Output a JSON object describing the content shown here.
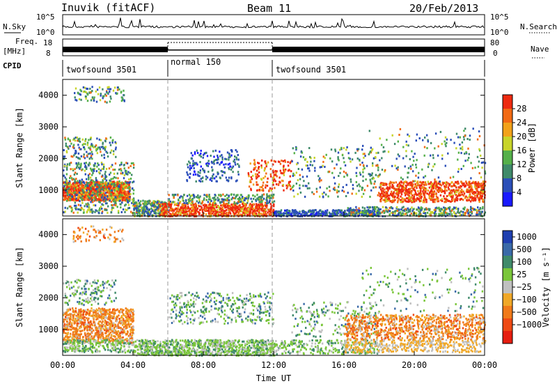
{
  "header": {
    "title_left": "Inuvik (fitACF)",
    "title_center": "Beam 11",
    "title_right": "20/Feb/2013"
  },
  "strip_labels": {
    "nsky": "N.Sky",
    "nsky_scale_top": "10^5",
    "nsky_scale_bottom": "10^0",
    "nsearch": "N.Search",
    "nsearch_scale_top": "10^5",
    "nsearch_scale_bottom": "10^0",
    "freq": "Freq.",
    "freq_unit": "[MHz]",
    "freq_top": "18",
    "freq_bottom": "8",
    "nave": "Nave",
    "nave_top": "80",
    "nave_bottom": "0",
    "cpid": "CPID"
  },
  "colors": {
    "power_scale": [
      "#1a1aff",
      "#2b4fb8",
      "#3f8a6a",
      "#55b04a",
      "#c8d42a",
      "#f2a21a",
      "#f26a14",
      "#ee2a10"
    ],
    "velocity_scale": [
      "#1f3fb0",
      "#3a6aa8",
      "#3f8a6a",
      "#7ac63a",
      "#c0c0c0",
      "#f0a828",
      "#f07a1a",
      "#ee4a14",
      "#e61e10"
    ]
  },
  "chart_data": [
    {
      "type": "line",
      "name": "radar-operations-strip",
      "cpid_segments": [
        {
          "label": "twofsound 3501",
          "start": "00:00",
          "end": "06:00"
        },
        {
          "label": "normal 150",
          "start": "06:00",
          "end": "12:00"
        },
        {
          "label": "twofsound 3501",
          "start": "12:00",
          "end": "24:00"
        }
      ],
      "nave_dotted_segment": {
        "start": "06:00",
        "end": "12:00",
        "value": 70
      }
    },
    {
      "type": "heatmap",
      "name": "power",
      "xlabel": "",
      "ylabel": "Slant Range [km]",
      "colorbar_label": "Power [dB]",
      "colorbar_ticks": [
        "28",
        "24",
        "20",
        "16",
        "12",
        "8",
        "4"
      ],
      "yticks": [
        "4000",
        "3000",
        "2000",
        "1000"
      ],
      "ylim": [
        180,
        4500
      ]
    },
    {
      "type": "heatmap",
      "name": "velocity",
      "xlabel": "Time UT",
      "ylabel": "Slant Range [km]",
      "colorbar_label": "Velocity [m s⁻¹]",
      "colorbar_ticks": [
        "1000",
        "500",
        "100",
        "25",
        "−25",
        "−100",
        "−500",
        "−1000"
      ],
      "yticks": [
        "4000",
        "3000",
        "2000",
        "1000"
      ],
      "ylim": [
        180,
        4500
      ],
      "xticks": [
        "00:00",
        "04:00",
        "08:00",
        "12:00",
        "16:00",
        "20:00",
        "00:00"
      ]
    }
  ]
}
